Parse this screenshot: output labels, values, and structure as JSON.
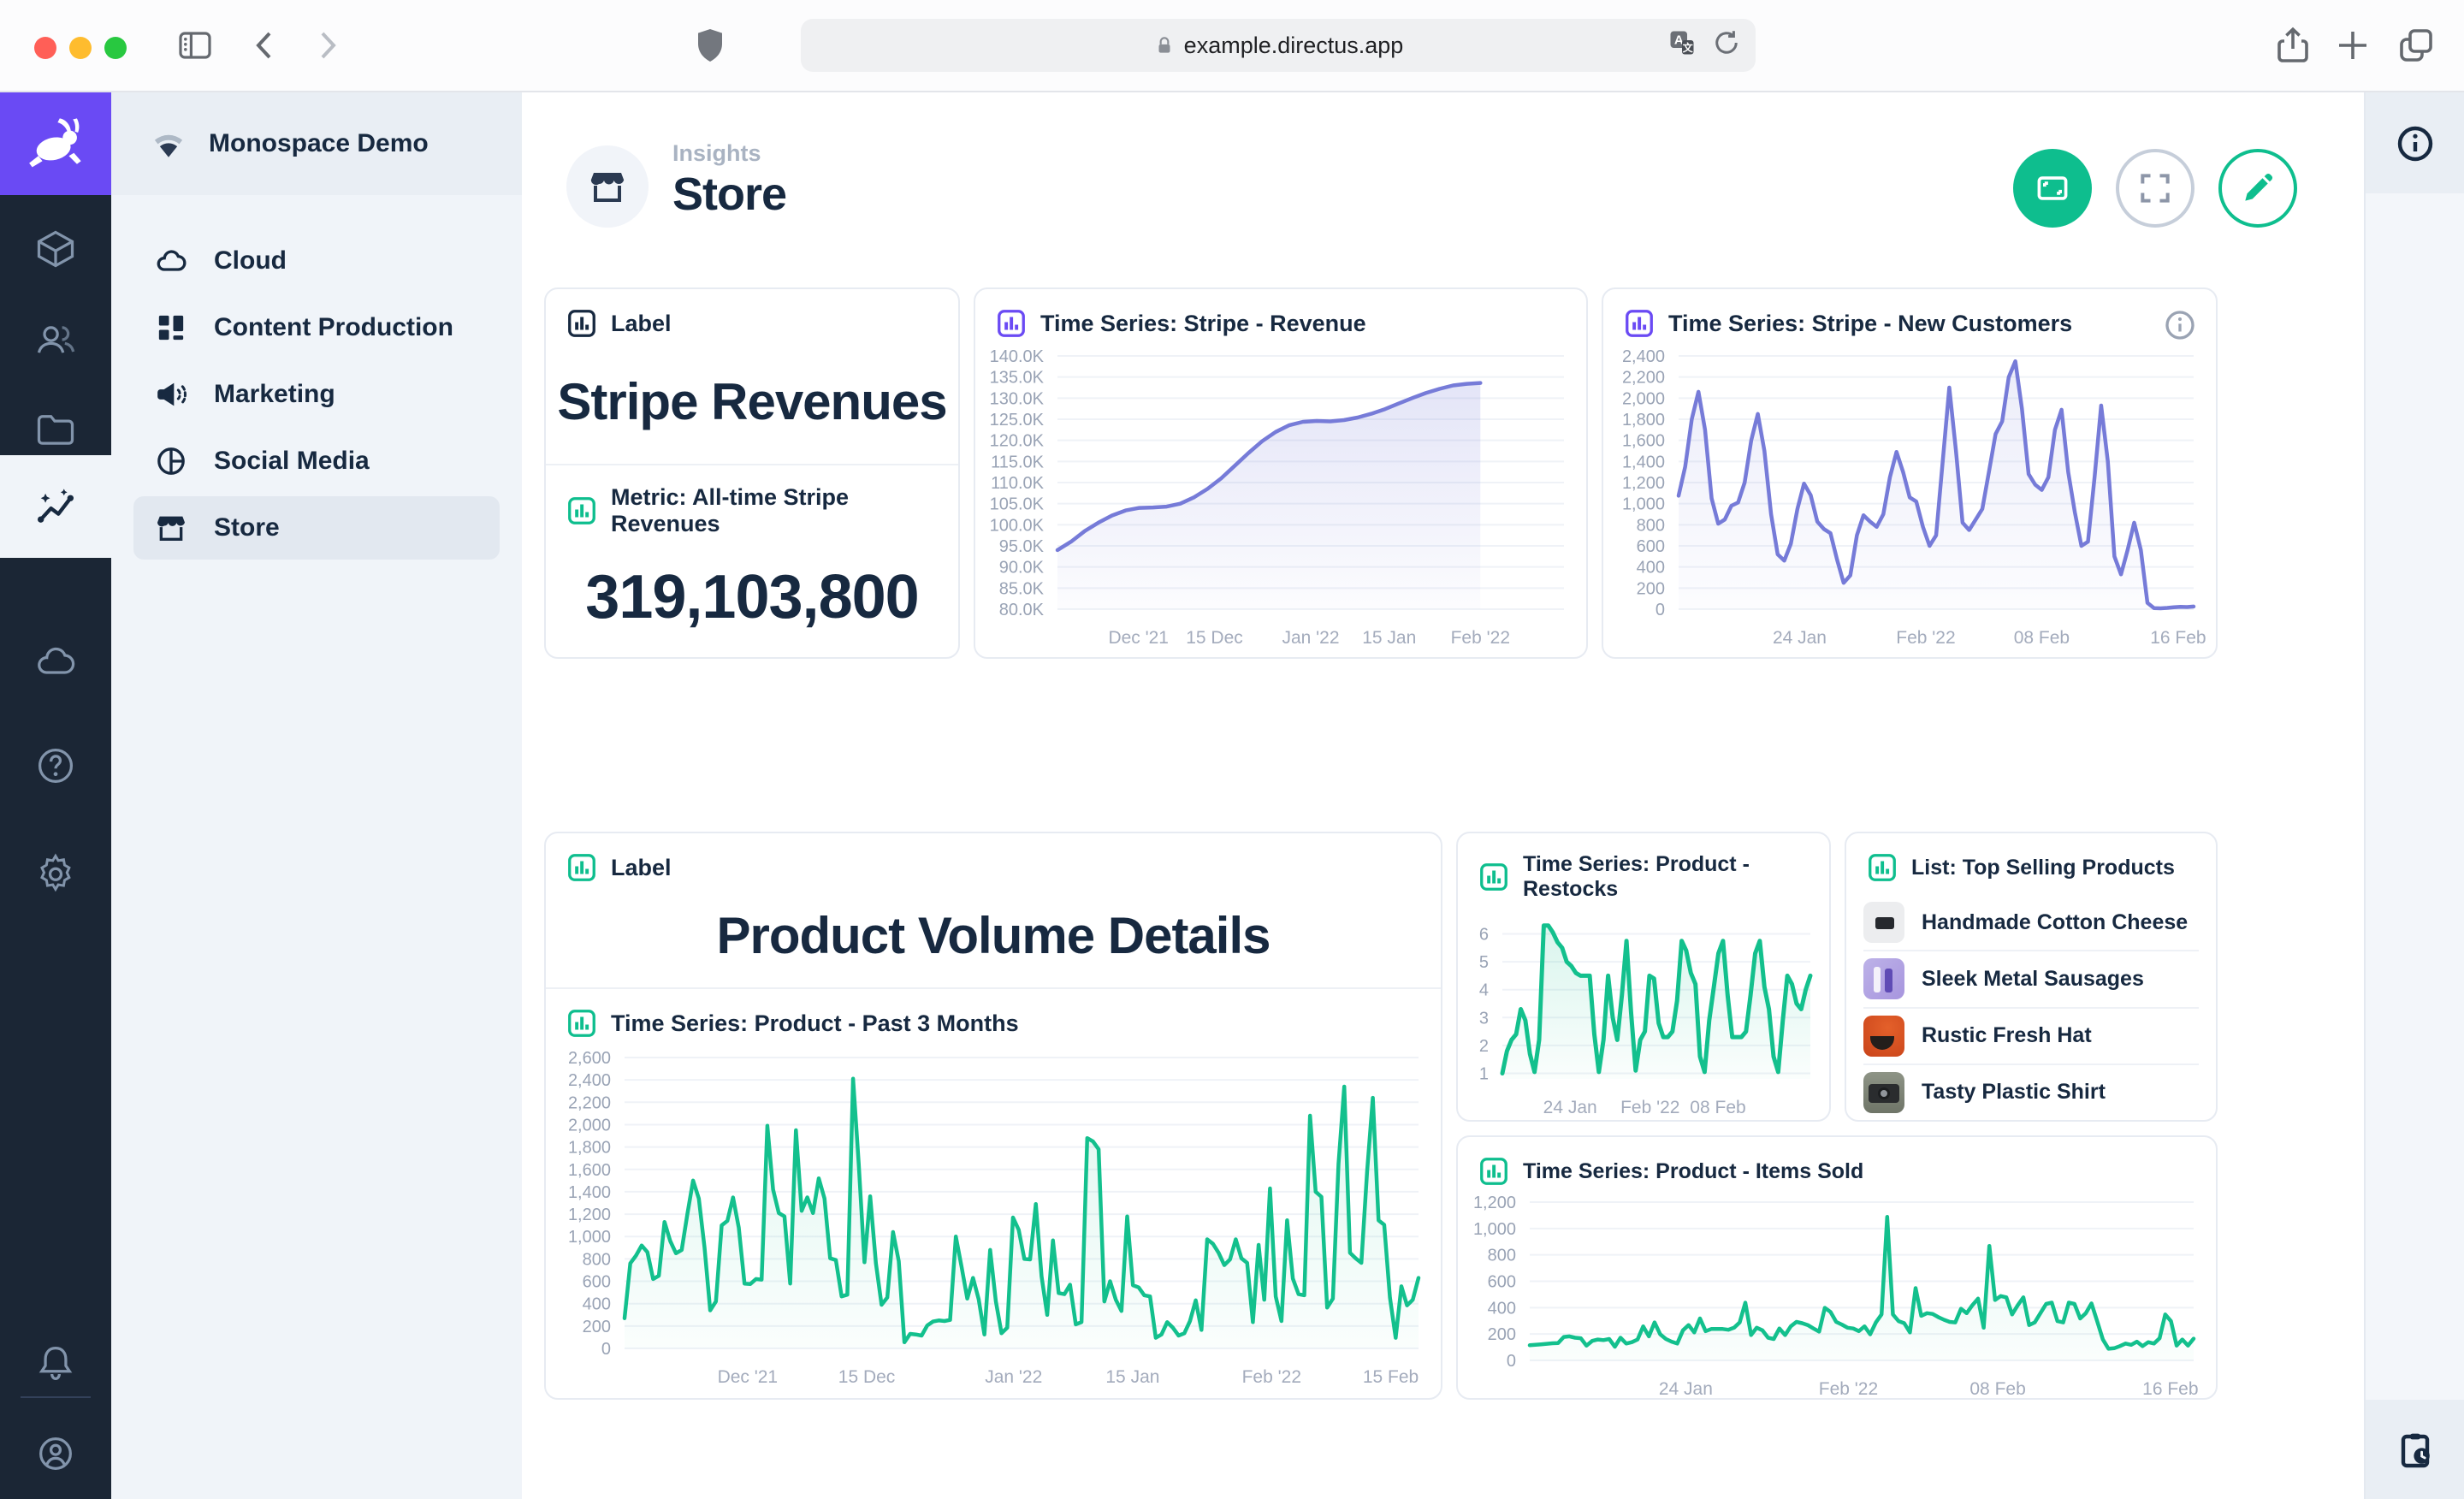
{
  "browser": {
    "url": "example.directus.app"
  },
  "sidebar": {
    "project": "Monospace Demo",
    "items": [
      {
        "label": "Cloud",
        "active": false
      },
      {
        "label": "Content Production",
        "active": false
      },
      {
        "label": "Marketing",
        "active": false
      },
      {
        "label": "Social Media",
        "active": false
      },
      {
        "label": "Store",
        "active": true
      }
    ]
  },
  "header": {
    "breadcrumb": "Insights",
    "title": "Store"
  },
  "panels": {
    "label_stripe": {
      "header": "Label",
      "title": "Stripe Revenues"
    },
    "metric": {
      "header": "Metric: All-time Stripe Revenues",
      "value": "319,103,800"
    },
    "revenue": {
      "header": "Time Series: Stripe - Revenue"
    },
    "new_customers": {
      "header": "Time Series: Stripe - New Customers"
    },
    "label_product": {
      "header": "Label",
      "title": "Product Volume Details"
    },
    "past3": {
      "header": "Time Series: Product - Past 3 Months"
    },
    "restocks": {
      "header": "Time Series: Product - Restocks"
    },
    "top_products": {
      "header": "List: Top Selling Products",
      "items": [
        {
          "name": "Handmade Cotton Cheese"
        },
        {
          "name": "Sleek Metal Sausages"
        },
        {
          "name": "Rustic Fresh Hat"
        },
        {
          "name": "Tasty Plastic Shirt"
        }
      ]
    },
    "items_sold": {
      "header": "Time Series: Product - Items Sold"
    }
  },
  "colors": {
    "accent_green": "#0EBE8E",
    "accent_purple": "#6A4AF4",
    "chart_purple": "#767BD8",
    "chart_green": "#13C08D",
    "dark_navy": "#172940",
    "module_bar_bg": "#1B2635",
    "nav_bg": "#F0F4F9"
  },
  "chart_data": [
    {
      "id": "stripe_revenue",
      "type": "area",
      "title": "Time Series: Stripe - Revenue",
      "color": "#767BD8",
      "fill_opacity": 0.2,
      "ylim": [
        80,
        140
      ],
      "span": 0.835,
      "yticks": [
        {
          "value": 140,
          "label": "140.0K"
        },
        {
          "value": 135,
          "label": "135.0K"
        },
        {
          "value": 130,
          "label": "130.0K"
        },
        {
          "value": 125,
          "label": "125.0K"
        },
        {
          "value": 120,
          "label": "120.0K"
        },
        {
          "value": 115,
          "label": "115.0K"
        },
        {
          "value": 110,
          "label": "110.0K"
        },
        {
          "value": 105,
          "label": "105.0K"
        },
        {
          "value": 100,
          "label": "100.0K"
        },
        {
          "value": 95,
          "label": "95.0K"
        },
        {
          "value": 90,
          "label": "90.0K"
        },
        {
          "value": 85,
          "label": "85.0K"
        },
        {
          "value": 80,
          "label": "80.0K"
        }
      ],
      "xticks": [
        {
          "pos": 0.16,
          "label": "Dec '21"
        },
        {
          "pos": 0.31,
          "label": "15 Dec"
        },
        {
          "pos": 0.5,
          "label": "Jan '22"
        },
        {
          "pos": 0.655,
          "label": "15 Jan"
        },
        {
          "pos": 0.835,
          "label": "Feb '22"
        }
      ],
      "values": [
        94,
        96,
        98.5,
        100.5,
        102.2,
        103.4,
        104,
        104.1,
        104.3,
        105,
        106.5,
        108.5,
        111,
        114,
        117,
        119.8,
        122,
        123.6,
        124.4,
        124.6,
        124.5,
        124.8,
        125.4,
        126.3,
        127.4,
        128.7,
        130,
        131.2,
        132.2,
        133,
        133.4,
        133.6
      ]
    },
    {
      "id": "stripe_new_customers",
      "type": "area",
      "title": "Time Series: Stripe - New Customers",
      "color": "#767BD8",
      "fill_opacity": 0.14,
      "ylim": [
        0,
        2400
      ],
      "span": 1,
      "yticks": [
        {
          "value": 2400,
          "label": "2,400"
        },
        {
          "value": 2200,
          "label": "2,200"
        },
        {
          "value": 2000,
          "label": "2,000"
        },
        {
          "value": 1800,
          "label": "1,800"
        },
        {
          "value": 1600,
          "label": "1,600"
        },
        {
          "value": 1400,
          "label": "1,400"
        },
        {
          "value": 1200,
          "label": "1,200"
        },
        {
          "value": 1000,
          "label": "1,000"
        },
        {
          "value": 800,
          "label": "800"
        },
        {
          "value": 600,
          "label": "600"
        },
        {
          "value": 400,
          "label": "400"
        },
        {
          "value": 200,
          "label": "200"
        },
        {
          "value": 0,
          "label": "0"
        }
      ],
      "xticks": [
        {
          "pos": 0.235,
          "label": "24 Jan"
        },
        {
          "pos": 0.48,
          "label": "Feb '22"
        },
        {
          "pos": 0.705,
          "label": "08 Feb"
        },
        {
          "pos": 0.97,
          "label": "16 Feb"
        }
      ],
      "values": [
        1075,
        1350,
        1800,
        2060,
        1700,
        1050,
        810,
        850,
        980,
        1010,
        1200,
        1600,
        1850,
        1500,
        900,
        520,
        460,
        620,
        950,
        1190,
        1080,
        830,
        760,
        720,
        470,
        250,
        320,
        700,
        890,
        830,
        780,
        900,
        1250,
        1490,
        1300,
        1060,
        1020,
        780,
        600,
        700,
        1400,
        2100,
        1500,
        820,
        750,
        850,
        950,
        1300,
        1660,
        1780,
        2200,
        2350,
        1900,
        1280,
        1180,
        1130,
        1250,
        1700,
        1890,
        1300,
        920,
        600,
        640,
        1250,
        1930,
        1400,
        500,
        330,
        560,
        820,
        560,
        60,
        10,
        8,
        12,
        18,
        22,
        20,
        25
      ]
    },
    {
      "id": "product_past_3_months",
      "type": "area",
      "title": "Time Series: Product - Past 3 Months",
      "color": "#13C08D",
      "fill_opacity": 0.13,
      "ylim": [
        0,
        2600
      ],
      "span": 1,
      "yticks": [
        {
          "value": 2600,
          "label": "2,600"
        },
        {
          "value": 2400,
          "label": "2,400"
        },
        {
          "value": 2200,
          "label": "2,200"
        },
        {
          "value": 2000,
          "label": "2,000"
        },
        {
          "value": 1800,
          "label": "1,800"
        },
        {
          "value": 1600,
          "label": "1,600"
        },
        {
          "value": 1400,
          "label": "1,400"
        },
        {
          "value": 1200,
          "label": "1,200"
        },
        {
          "value": 1000,
          "label": "1,000"
        },
        {
          "value": 800,
          "label": "800"
        },
        {
          "value": 600,
          "label": "600"
        },
        {
          "value": 400,
          "label": "400"
        },
        {
          "value": 200,
          "label": "200"
        },
        {
          "value": 0,
          "label": "0"
        }
      ],
      "xticks": [
        {
          "pos": 0.155,
          "label": "Dec '21"
        },
        {
          "pos": 0.305,
          "label": "15 Dec"
        },
        {
          "pos": 0.49,
          "label": "Jan '22"
        },
        {
          "pos": 0.64,
          "label": "15 Jan"
        },
        {
          "pos": 0.815,
          "label": "Feb '22"
        },
        {
          "pos": 0.965,
          "label": "15 Feb"
        }
      ],
      "values": [
        270,
        760,
        830,
        920,
        860,
        620,
        650,
        1130,
        960,
        850,
        880,
        1200,
        1500,
        1340,
        900,
        340,
        420,
        1100,
        1140,
        1350,
        1080,
        580,
        575,
        620,
        615,
        1990,
        1420,
        1210,
        1180,
        580,
        1950,
        1230,
        1350,
        1210,
        1520,
        1340,
        805,
        790,
        465,
        480,
        2410,
        1650,
        770,
        1360,
        760,
        390,
        455,
        1040,
        780,
        55,
        130,
        125,
        115,
        205,
        240,
        250,
        245,
        255,
        1000,
        730,
        445,
        630,
        440,
        125,
        880,
        420,
        135,
        185,
        1170,
        1060,
        800,
        795,
        1290,
        645,
        300,
        965,
        495,
        485,
        570,
        215,
        235,
        1880,
        1850,
        1780,
        420,
        600,
        435,
        335,
        1180,
        565,
        545,
        475,
        465,
        95,
        125,
        235,
        185,
        115,
        135,
        245,
        430,
        165,
        975,
        935,
        855,
        745,
        795,
        975,
        805,
        765,
        235,
        925,
        435,
        1430,
        465,
        245,
        1145,
        625,
        485,
        475,
        2080,
        1400,
        1355,
        365,
        445,
        1650,
        2340,
        855,
        805,
        765,
        1580,
        2240,
        1145,
        1105,
        455,
        95,
        555,
        385,
        435,
        630
      ]
    },
    {
      "id": "product_restocks",
      "type": "area",
      "title": "Time Series: Product - Restocks",
      "color": "#13C08D",
      "fill_opacity": 0.16,
      "ylim": [
        0.8,
        6.6
      ],
      "span": 1,
      "yticks": [
        {
          "value": 6,
          "label": "6"
        },
        {
          "value": 5,
          "label": "5"
        },
        {
          "value": 4,
          "label": "4"
        },
        {
          "value": 3,
          "label": "3"
        },
        {
          "value": 2,
          "label": "2"
        },
        {
          "value": 1,
          "label": "1"
        }
      ],
      "xticks": [
        {
          "pos": 0.22,
          "label": "24 Jan"
        },
        {
          "pos": 0.48,
          "label": "Feb '22"
        },
        {
          "pos": 0.7,
          "label": "08 Feb"
        }
      ],
      "values": [
        1,
        1.8,
        2.2,
        2.4,
        3.3,
        2.9,
        1.7,
        1.05,
        2.2,
        6.3,
        6.3,
        6.05,
        5.7,
        5.5,
        5,
        4.85,
        4.6,
        4.5,
        4.5,
        4.5,
        2.4,
        1.05,
        2.2,
        4.5,
        3,
        2.2,
        3.8,
        5.75,
        3.2,
        1.1,
        2.2,
        2.5,
        4.5,
        4.4,
        2.8,
        2.3,
        2.3,
        2.5,
        3.6,
        5.75,
        5.4,
        4.6,
        4.2,
        1.6,
        1.05,
        2.9,
        4.1,
        5.3,
        5.75,
        3.8,
        2.3,
        2.3,
        2.3,
        2.5,
        3.8,
        5.3,
        5.75,
        4.1,
        3.3,
        1.6,
        1.05,
        2.9,
        4.5,
        4.2,
        3.5,
        3.3,
        4,
        4.5
      ]
    },
    {
      "id": "product_items_sold",
      "type": "area",
      "title": "Time Series: Product - Items Sold",
      "color": "#13C08D",
      "fill_opacity": 0.1,
      "ylim": [
        0,
        1200
      ],
      "span": 1,
      "yticks": [
        {
          "value": 1200,
          "label": "1,200"
        },
        {
          "value": 1000,
          "label": "1,000"
        },
        {
          "value": 800,
          "label": "800"
        },
        {
          "value": 600,
          "label": "600"
        },
        {
          "value": 400,
          "label": "400"
        },
        {
          "value": 200,
          "label": "200"
        },
        {
          "value": 0,
          "label": "0"
        }
      ],
      "xticks": [
        {
          "pos": 0.235,
          "label": "24 Jan"
        },
        {
          "pos": 0.48,
          "label": "Feb '22"
        },
        {
          "pos": 0.705,
          "label": "08 Feb"
        },
        {
          "pos": 0.965,
          "label": "16 Feb"
        }
      ],
      "values": [
        115,
        118,
        122,
        126,
        130,
        132,
        178,
        182,
        172,
        168,
        112,
        148,
        158,
        154,
        162,
        104,
        172,
        128,
        138,
        158,
        258,
        182,
        288,
        198,
        162,
        142,
        128,
        228,
        268,
        212,
        318,
        222,
        238,
        238,
        238,
        232,
        248,
        288,
        438,
        192,
        248,
        228,
        172,
        162,
        242,
        192,
        258,
        292,
        282,
        268,
        242,
        218,
        398,
        368,
        292,
        272,
        248,
        242,
        222,
        258,
        198,
        288,
        348,
        1088,
        348,
        298,
        282,
        212,
        548,
        338,
        358,
        352,
        328,
        308,
        292,
        288,
        392,
        358,
        418,
        468,
        248,
        868,
        458,
        488,
        478,
        348,
        418,
        478,
        268,
        288,
        358,
        428,
        438,
        298,
        288,
        438,
        428,
        318,
        358,
        432,
        298,
        158,
        88,
        92,
        108,
        128,
        118,
        142,
        108,
        138,
        128,
        168,
        348,
        298,
        112,
        158,
        112,
        165
      ]
    }
  ]
}
